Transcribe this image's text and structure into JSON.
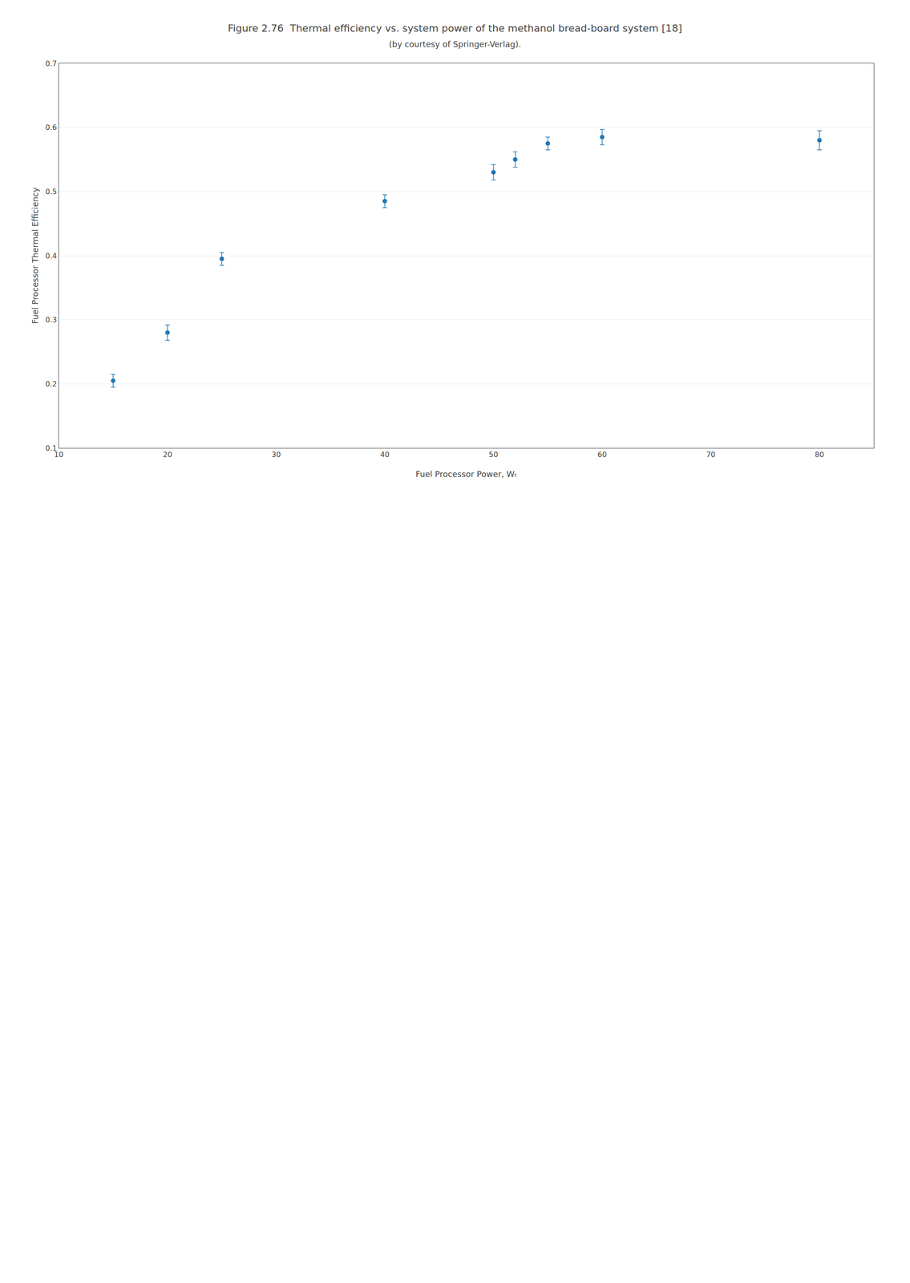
{
  "chart_data": {
    "type": "scatter",
    "title": "Figure 2.76  Thermal efficiency vs. system power of the methanol bread-board system [18]",
    "subtitle": "(by courtesy of Springer-Verlag).",
    "x": [
      15,
      20,
      25,
      40,
      50,
      52,
      55,
      60,
      80
    ],
    "values": [
      0.205,
      0.28,
      0.395,
      0.485,
      0.53,
      0.55,
      0.575,
      0.585,
      0.58
    ],
    "yerr": [
      0.01,
      0.012,
      0.01,
      0.01,
      0.012,
      0.012,
      0.01,
      0.012,
      0.015
    ],
    "xlabel": "Fuel Processor Power, Wₜ",
    "ylabel": "Fuel Processor Thermal Efficiency",
    "xlim": [
      10,
      85
    ],
    "ylim": [
      0.1,
      0.7
    ],
    "xticks": [
      10,
      20,
      30,
      40,
      50,
      60,
      70,
      80
    ],
    "yticks": [
      0.1,
      0.2,
      0.3,
      0.4,
      0.5,
      0.6,
      0.7
    ],
    "grid": "y",
    "marker": "circle"
  }
}
